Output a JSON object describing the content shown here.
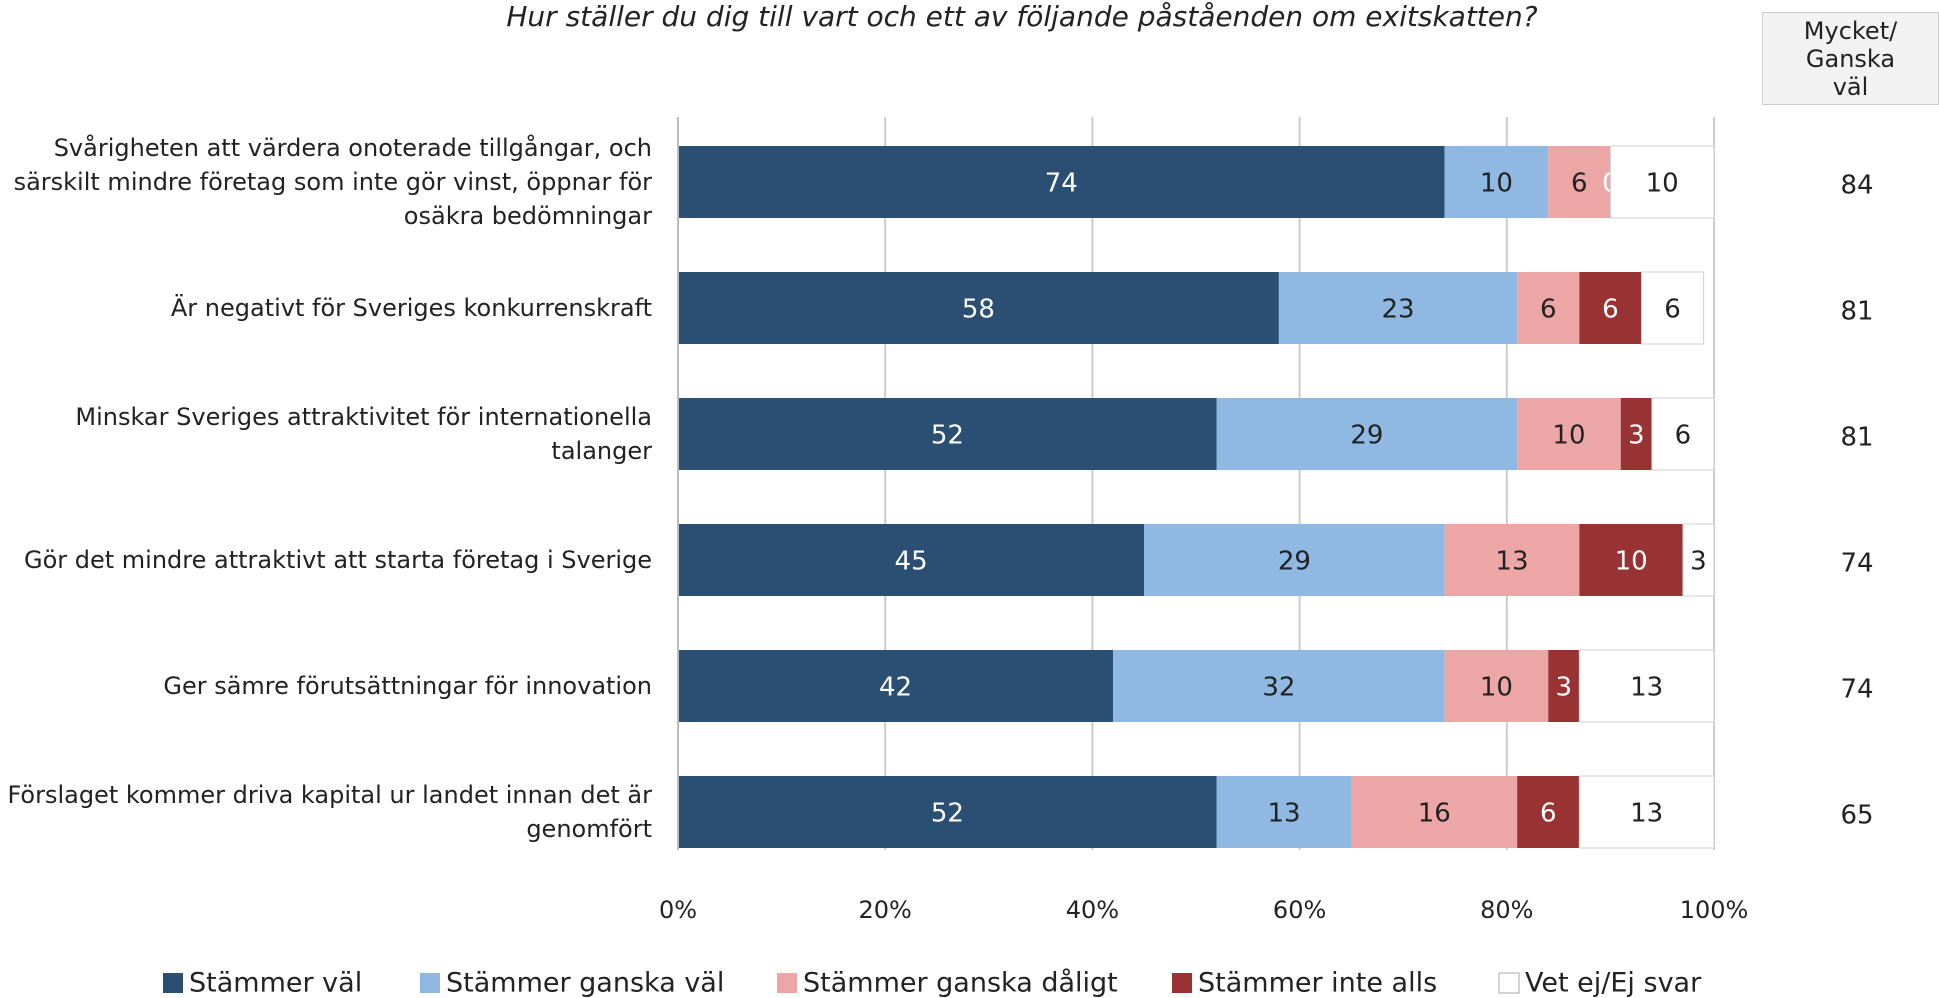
{
  "chart_data": {
    "type": "stacked-bar-horizontal",
    "title": "Hur ställer du dig till vart och ett av följande påståenden om exitskatten?",
    "categories": [
      "Svårigheten att värdera onoterade tillgångar, och särskilt mindre företag som inte gör vinst, öppnar för osäkra bedömningar",
      "Är negativt för Sveriges konkurrenskraft",
      "Minskar Sveriges attraktivitet för internationella talanger",
      "Gör det mindre attraktivt att starta företag i Sverige",
      "Ger sämre förutsättningar för innovation",
      "Förslaget kommer driva kapital ur landet innan det är genomfört"
    ],
    "series": [
      {
        "name": "Stämmer väl",
        "color": "#2b4f73",
        "values": [
          74,
          58,
          52,
          45,
          42,
          52
        ]
      },
      {
        "name": "Stämmer ganska väl",
        "color": "#8fb9e3",
        "values": [
          10,
          23,
          29,
          29,
          32,
          13
        ]
      },
      {
        "name": "Stämmer ganska dåligt",
        "color": "#eda6a6",
        "values": [
          6,
          6,
          10,
          13,
          10,
          16
        ]
      },
      {
        "name": "Stämmer inte alls",
        "color": "#993333",
        "values": [
          0,
          6,
          3,
          10,
          3,
          6
        ]
      },
      {
        "name": "Vet ej/Ej svar",
        "color": "#ffffff",
        "values": [
          10,
          6,
          6,
          3,
          13,
          13
        ]
      }
    ],
    "xlim": [
      0,
      100
    ],
    "xticks": [
      {
        "value": 0,
        "label": "0%"
      },
      {
        "value": 20,
        "label": "20%"
      },
      {
        "value": 40,
        "label": "40%"
      },
      {
        "value": 60,
        "label": "60%"
      },
      {
        "value": 80,
        "label": "80%"
      },
      {
        "value": 100,
        "label": "100%"
      }
    ],
    "grid": true,
    "legend": "bottom",
    "totals": {
      "header": "Mycket/ Ganska väl",
      "values": [
        84,
        81,
        81,
        74,
        74,
        65
      ]
    }
  }
}
